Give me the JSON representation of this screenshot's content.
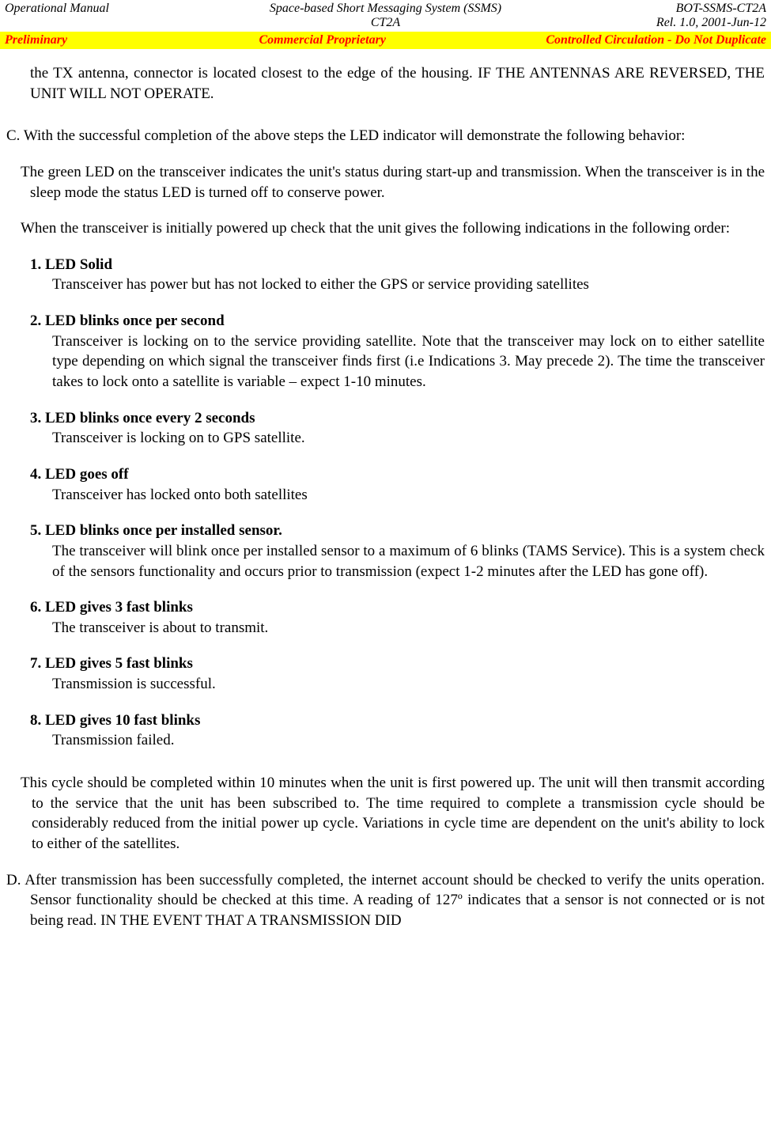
{
  "header": {
    "row1": {
      "left": "Operational Manual",
      "center": "Space-based Short Messaging System (SSMS)",
      "right": "BOT-SSMS-CT2A"
    },
    "row2": {
      "left": "",
      "center": "CT2A",
      "right": "Rel. 1.0, 2001-Jun-12"
    }
  },
  "banner": {
    "left": "Preliminary",
    "center": "Commercial Proprietary",
    "right": "Controlled Circulation - Do Not Duplicate"
  },
  "para_cont": "the TX antenna, connector is located closest to the edge of the housing. IF THE ANTENNAS ARE REVERSED, THE UNIT WILL NOT OPERATE.",
  "sectionC_intro": "C. With the successful completion of the above steps the LED indicator will demonstrate the following behavior:",
  "sectionC_p1": "The green LED on the transceiver indicates the unit's status during start-up and transmission. When the transceiver is in the sleep mode the status LED is turned off to conserve power.",
  "sectionC_p2": "When the transceiver is initially powered up check that the unit gives the following indications in the following order:",
  "led": [
    {
      "head": "1. LED Solid",
      "body": "Transceiver has power but has not locked to either the GPS or service providing satellites"
    },
    {
      "head": "2. LED blinks once per second",
      "body": "Transceiver is locking on to the service providing satellite. Note that the transceiver may lock on to either satellite type depending on which signal the transceiver finds first (i.e Indications 3. May precede 2). The time the transceiver takes to lock onto a satellite is variable – expect 1-10 minutes."
    },
    {
      "head": "3. LED blinks once every 2 seconds",
      "body": "Transceiver is locking on to GPS satellite."
    },
    {
      "head": "4. LED goes off",
      "body": "Transceiver has locked onto both satellites"
    },
    {
      "head": "5. LED blinks once per installed sensor.",
      "body": "The transceiver will blink once per installed sensor to a maximum of 6 blinks (TAMS Service). This is a system check of the sensors functionality and occurs prior to transmission (expect 1-2 minutes after the LED has gone off)."
    },
    {
      "head": "6. LED gives 3 fast blinks",
      "body": "The transceiver is about to transmit."
    },
    {
      "head": "7. LED gives 5 fast blinks",
      "body": "Transmission is successful."
    },
    {
      "head": "8. LED gives 10 fast blinks",
      "body": "Transmission failed."
    }
  ],
  "cycle_para": "This cycle should be completed within 10 minutes when the unit is first powered up. The unit will then transmit according to the service that the unit has been subscribed to. The time required to complete a transmission cycle should be considerably reduced from the initial power up cycle. Variations in cycle time are dependent on the unit's ability to lock to either of the satellites.",
  "sectionD": "D. After transmission has been successfully completed, the internet account should be checked to verify the units operation. Sensor functionality should be checked at this time. A reading of 127º indicates that a sensor is not connected or is not being read. IN THE EVENT THAT A TRANSMISSION DID"
}
